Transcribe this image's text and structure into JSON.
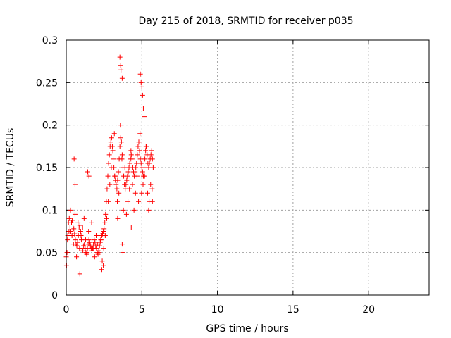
{
  "chart_data": {
    "type": "scatter",
    "title": "Day 215 of 2018, SRMTID for receiver p035",
    "xlabel": "GPS time / hours",
    "ylabel": "SRMTID / TECUs",
    "xlim": [
      0,
      24
    ],
    "ylim": [
      0,
      0.3
    ],
    "xticks": [
      0,
      5,
      10,
      15,
      20
    ],
    "xtick_labels": [
      "0",
      "5",
      "10",
      "15",
      "20"
    ],
    "yticks": [
      0,
      0.05,
      0.1,
      0.15,
      0.2,
      0.25,
      0.3
    ],
    "ytick_labels": [
      "0",
      "0.05",
      "0.1",
      "0.15",
      "0.2",
      "0.25",
      "0.3"
    ],
    "grid": true,
    "marker": "+",
    "series": [
      {
        "name": "SRMTID",
        "color": "#ff0000",
        "x": [
          0.0,
          0.05,
          0.1,
          0.15,
          0.2,
          0.25,
          0.3,
          0.35,
          0.4,
          0.45,
          0.5,
          0.55,
          0.6,
          0.65,
          0.7,
          0.75,
          0.8,
          0.85,
          0.9,
          0.95,
          1.0,
          1.05,
          1.1,
          1.15,
          1.2,
          1.25,
          1.3,
          1.35,
          1.4,
          1.45,
          1.5,
          1.55,
          1.6,
          1.65,
          1.7,
          1.75,
          1.8,
          1.85,
          1.9,
          1.95,
          2.0,
          2.05,
          2.1,
          2.15,
          2.2,
          2.25,
          2.3,
          2.35,
          2.4,
          2.45,
          2.5,
          2.55,
          2.6,
          2.65,
          2.7,
          2.75,
          2.8,
          2.85,
          2.9,
          2.95,
          3.0,
          3.05,
          3.1,
          3.15,
          3.2,
          3.25,
          3.3,
          3.35,
          3.4,
          3.45,
          3.5,
          3.55,
          3.6,
          3.65,
          3.7,
          3.75,
          3.8,
          3.85,
          3.9,
          3.95,
          4.0,
          4.05,
          4.1,
          4.15,
          4.2,
          4.25,
          4.3,
          4.35,
          4.4,
          4.45,
          4.5,
          4.55,
          4.6,
          4.65,
          4.7,
          4.75,
          4.8,
          4.85,
          4.9,
          4.95,
          5.0,
          5.05,
          5.1,
          5.15,
          5.2,
          5.25,
          5.3,
          5.35,
          5.4,
          5.45,
          5.5,
          5.55,
          5.6,
          5.65,
          5.7,
          5.75,
          0.08,
          0.18,
          0.28,
          0.38,
          0.48,
          0.58,
          0.68,
          0.78,
          0.88,
          0.98,
          1.08,
          1.18,
          1.28,
          1.38,
          1.48,
          1.58,
          1.68,
          1.78,
          1.88,
          1.98,
          2.08,
          2.18,
          2.28,
          2.38,
          2.48,
          2.58,
          2.68,
          2.78,
          2.88,
          2.98,
          3.08,
          3.18,
          3.28,
          3.38,
          3.48,
          3.58,
          3.68,
          3.78,
          3.88,
          3.98,
          4.08,
          4.18,
          4.28,
          4.38,
          4.48,
          4.58,
          4.68,
          4.78,
          4.88,
          4.98,
          5.08,
          5.18,
          5.28,
          5.38,
          5.48,
          5.58,
          5.68,
          3.55,
          3.6,
          3.62,
          3.7,
          4.9,
          4.95,
          5.0,
          5.05,
          0.52,
          0.58,
          1.42,
          1.5,
          3.7,
          3.75,
          5.1,
          5.15,
          0.02,
          0.9,
          2.35,
          2.45,
          3.4,
          4.3,
          5.45,
          5.7
        ],
        "y": [
          0.045,
          0.05,
          0.07,
          0.085,
          0.09,
          0.08,
          0.075,
          0.085,
          0.088,
          0.08,
          0.078,
          0.072,
          0.065,
          0.06,
          0.058,
          0.062,
          0.07,
          0.08,
          0.082,
          0.075,
          0.065,
          0.055,
          0.052,
          0.058,
          0.06,
          0.055,
          0.05,
          0.048,
          0.055,
          0.06,
          0.065,
          0.062,
          0.058,
          0.055,
          0.052,
          0.055,
          0.06,
          0.065,
          0.062,
          0.058,
          0.055,
          0.05,
          0.048,
          0.052,
          0.058,
          0.062,
          0.065,
          0.07,
          0.072,
          0.075,
          0.078,
          0.085,
          0.095,
          0.11,
          0.125,
          0.14,
          0.155,
          0.165,
          0.175,
          0.18,
          0.185,
          0.175,
          0.16,
          0.15,
          0.14,
          0.135,
          0.13,
          0.125,
          0.135,
          0.145,
          0.16,
          0.175,
          0.185,
          0.18,
          0.165,
          0.15,
          0.14,
          0.13,
          0.125,
          0.13,
          0.135,
          0.14,
          0.145,
          0.15,
          0.155,
          0.16,
          0.165,
          0.16,
          0.15,
          0.145,
          0.14,
          0.145,
          0.15,
          0.155,
          0.165,
          0.175,
          0.18,
          0.17,
          0.16,
          0.155,
          0.15,
          0.145,
          0.14,
          0.15,
          0.16,
          0.17,
          0.175,
          0.165,
          0.155,
          0.15,
          0.155,
          0.16,
          0.165,
          0.17,
          0.16,
          0.15,
          0.065,
          0.075,
          0.1,
          0.07,
          0.06,
          0.095,
          0.045,
          0.085,
          0.055,
          0.07,
          0.08,
          0.09,
          0.065,
          0.05,
          0.075,
          0.06,
          0.085,
          0.055,
          0.045,
          0.07,
          0.06,
          0.05,
          0.065,
          0.04,
          0.055,
          0.07,
          0.09,
          0.11,
          0.13,
          0.15,
          0.17,
          0.19,
          0.14,
          0.11,
          0.12,
          0.2,
          0.16,
          0.1,
          0.15,
          0.095,
          0.11,
          0.125,
          0.17,
          0.13,
          0.1,
          0.12,
          0.14,
          0.11,
          0.19,
          0.12,
          0.13,
          0.14,
          0.175,
          0.12,
          0.11,
          0.13,
          0.125,
          0.28,
          0.27,
          0.265,
          0.255,
          0.26,
          0.25,
          0.245,
          0.235,
          0.16,
          0.13,
          0.145,
          0.14,
          0.06,
          0.05,
          0.22,
          0.21,
          0.035,
          0.025,
          0.03,
          0.035,
          0.09,
          0.08,
          0.1,
          0.11
        ]
      }
    ]
  }
}
